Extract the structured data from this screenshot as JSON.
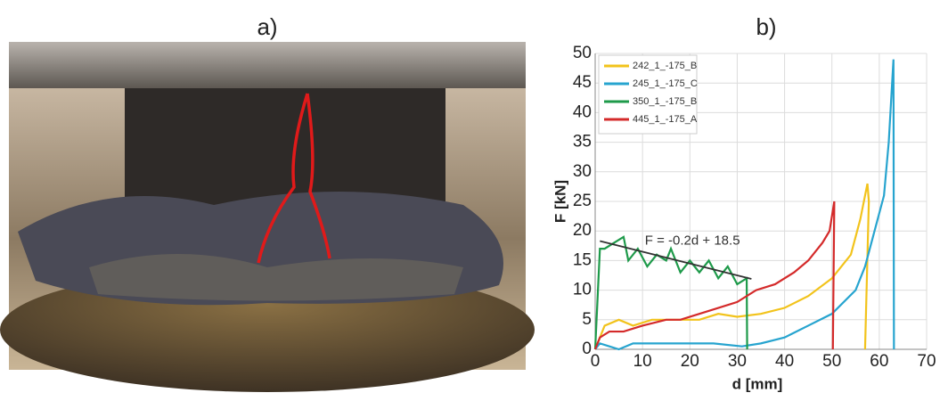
{
  "photo": {
    "label": "a)"
  },
  "chart_data": {
    "type": "line",
    "title": "b)",
    "xlabel": "d [mm]",
    "ylabel": "F [kN]",
    "xlim": [
      0,
      70
    ],
    "xticks": [
      0,
      10,
      20,
      30,
      40,
      50,
      60,
      70
    ],
    "ylim": [
      0,
      50
    ],
    "yticks": [
      0,
      5,
      10,
      15,
      20,
      25,
      30,
      35,
      40,
      45,
      50
    ],
    "grid": true,
    "legend": "upper-left",
    "series": [
      {
        "name": "242_1_-175_B",
        "color": "#f2c31b",
        "x": [
          0,
          2,
          5,
          8,
          12,
          18,
          22,
          26,
          30,
          35,
          40,
          45,
          50,
          54,
          56,
          57.5,
          57.8,
          57
        ],
        "values": [
          0,
          4,
          5,
          4,
          5,
          5,
          5,
          6,
          5.5,
          6,
          7,
          9,
          12,
          16,
          22,
          28,
          25,
          0
        ]
      },
      {
        "name": "245_1_-175_C",
        "color": "#27a4cf",
        "x": [
          0,
          1,
          3,
          5,
          8,
          15,
          20,
          25,
          31,
          35,
          40,
          45,
          50,
          55,
          57,
          59,
          61,
          62,
          63,
          63.1
        ],
        "values": [
          0,
          1,
          0.5,
          0,
          1,
          1,
          1,
          1,
          0.5,
          1,
          2,
          4,
          6,
          10,
          14,
          20,
          26,
          35,
          49,
          0
        ]
      },
      {
        "name": "350_1_-175_B",
        "color": "#1e9a4a",
        "x": [
          0,
          1,
          2,
          4,
          6,
          7,
          9,
          11,
          13,
          15,
          16,
          18,
          20,
          22,
          24,
          26,
          28,
          30,
          32,
          32.1
        ],
        "values": [
          0,
          17,
          17,
          18,
          19,
          15,
          17,
          14,
          16,
          15,
          17,
          13,
          15,
          13,
          15,
          12,
          14,
          11,
          12,
          0
        ]
      },
      {
        "name": "445_1_-175_A",
        "color": "#d42a2a",
        "x": [
          0,
          1,
          3,
          6,
          10,
          15,
          18,
          22,
          26,
          30,
          34,
          38,
          42,
          45,
          48,
          49.5,
          50.5,
          50.2
        ],
        "values": [
          0,
          2,
          3,
          3,
          4,
          5,
          5,
          6,
          7,
          8,
          10,
          11,
          13,
          15,
          18,
          20,
          25,
          0
        ]
      }
    ],
    "annotation": "F = -0.2d + 18.5",
    "trend_line": {
      "x": [
        1,
        33
      ],
      "values": [
        18.3,
        11.9
      ],
      "color": "#333333"
    }
  }
}
